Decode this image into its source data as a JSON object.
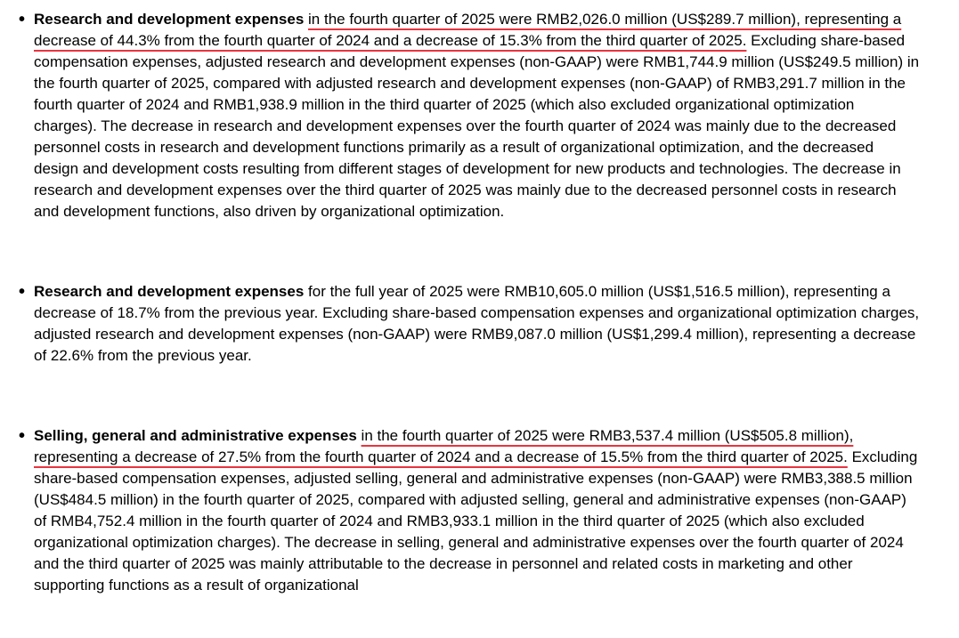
{
  "items": [
    {
      "heading": "Research and development expenses",
      "underlined": "in the fourth quarter of 2025 were RMB2,026.0 million (US$289.7 million), representing a decrease of 44.3% from the fourth quarter of 2024 and a decrease of 15.3% from the third quarter of 2025.",
      "text": "Excluding share-based compensation expenses, adjusted research and development expenses (non-GAAP) were RMB1,744.9 million (US$249.5 million) in the fourth quarter of 2025, compared with adjusted research and development expenses (non-GAAP) of RMB3,291.7 million in the fourth quarter of 2024 and RMB1,938.9 million in the third quarter of 2025 (which also excluded organizational optimization charges). The decrease in research and development expenses over the fourth quarter of 2024 was mainly due to the decreased personnel costs in research and development functions primarily as a result of organizational optimization, and the decreased design and development costs resulting from different stages of development for new products and technologies. The decrease in research and development expenses over the third quarter of 2025 was mainly due to the decreased personnel costs in research and development functions, also driven by organizational optimization."
    },
    {
      "heading": "Research and development expenses",
      "text": "for the full year of 2025 were RMB10,605.0 million (US$1,516.5 million), representing a decrease of 18.7% from the previous year. Excluding share-based compensation expenses and organizational optimization charges, adjusted research and development expenses (non-GAAP) were RMB9,087.0 million (US$1,299.4 million), representing a decrease of 22.6% from the previous year."
    },
    {
      "heading": "Selling, general and administrative expenses",
      "underlined": "in the fourth quarter of 2025 were RMB3,537.4 million (US$505.8 million), representing a decrease of 27.5% from the fourth quarter of 2024 and a decrease of 15.5% from the third quarter of 2025.",
      "text": "Excluding share-based compensation expenses, adjusted selling, general and administrative expenses (non-GAAP) were RMB3,388.5 million (US$484.5 million) in the fourth quarter of 2025, compared with adjusted selling, general and administrative expenses (non-GAAP) of RMB4,752.4 million in the fourth quarter of 2024 and RMB3,933.1 million in the third quarter of 2025 (which also excluded organizational optimization charges). The decrease in selling, general and administrative expenses over the fourth quarter of 2024 and the third quarter of 2025 was mainly attributable to the decrease in personnel and related costs in marketing and other supporting functions as a result of organizational"
    }
  ]
}
